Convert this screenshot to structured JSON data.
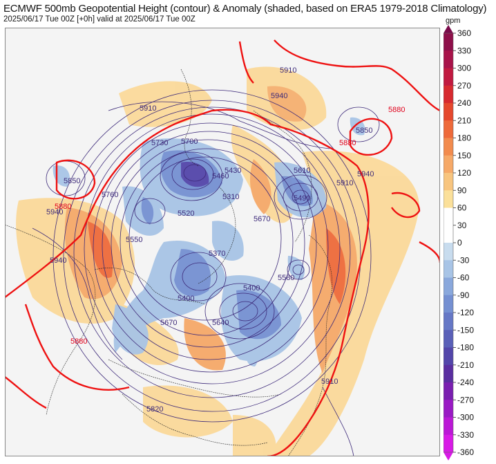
{
  "header": {
    "title": "ECMWF 500mb Geopotential Height (contour) & Anomaly (shaded, based on ERA5 1979-2018 Climatology)",
    "subtitle": "2025/06/17 Tue 00Z [+0h] valid at 2025/06/17 Tue 00Z"
  },
  "colorbar": {
    "unit": "gpm",
    "ticks": [
      360,
      330,
      300,
      270,
      240,
      210,
      180,
      150,
      120,
      90,
      60,
      30,
      0,
      -30,
      -60,
      -90,
      -120,
      -150,
      -180,
      -210,
      -240,
      -270,
      -300,
      -330,
      -360
    ],
    "colors": [
      "#7a0a4a",
      "#8e0f4a",
      "#a8134a",
      "#c11a40",
      "#d72a2f",
      "#e5482d",
      "#ee6a3a",
      "#f28b4e",
      "#f6a968",
      "#f8c57f",
      "#fbe09a",
      "#ffffff",
      "#ffffff",
      "#c8dcee",
      "#a8c4e6",
      "#8aa8dc",
      "#7590d2",
      "#6678c6",
      "#5a60b8",
      "#5346aa",
      "#5a2ea0",
      "#7a1fb0",
      "#9a1ac4",
      "#bb18d6",
      "#d81ae6"
    ]
  },
  "contour_labels": [
    {
      "text": "5910"
    },
    {
      "text": "5940"
    },
    {
      "text": "5880"
    },
    {
      "text": "5850"
    },
    {
      "text": "5730"
    },
    {
      "text": "5700"
    },
    {
      "text": "5610"
    },
    {
      "text": "5490"
    },
    {
      "text": "5520"
    },
    {
      "text": "5370"
    },
    {
      "text": "5400"
    },
    {
      "text": "5670"
    },
    {
      "text": "5640"
    },
    {
      "text": "5820"
    },
    {
      "text": "5580"
    },
    {
      "text": "5760"
    },
    {
      "text": "5460"
    },
    {
      "text": "5430"
    },
    {
      "text": "5550"
    },
    {
      "text": "5310"
    }
  ]
}
